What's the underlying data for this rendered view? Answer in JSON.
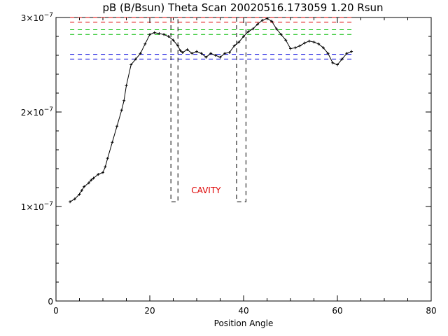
{
  "chart_data": {
    "type": "scatter",
    "title": "pB (B/Bsun) Theta Scan 20020516.173059 1.20 Rsun",
    "xlabel": "Position Angle",
    "ylabel": "",
    "xlim": [
      0,
      80
    ],
    "ylim": [
      0,
      3e-07
    ],
    "grid": false,
    "x_ticks": [
      0,
      20,
      40,
      60,
      80
    ],
    "x_tick_labels": [
      "0",
      "20",
      "40",
      "60",
      "80"
    ],
    "y_ticks": [
      0,
      1e-07,
      2e-07,
      3e-07
    ],
    "y_tick_labels": [
      {
        "mant": "0",
        "exp": ""
      },
      {
        "mant": "1×10",
        "exp": "−7"
      },
      {
        "mant": "2×10",
        "exp": "−7"
      },
      {
        "mant": "3×10",
        "exp": "−7"
      }
    ],
    "series": [
      {
        "style": "points+line",
        "color": "#000000",
        "x": [
          3,
          4,
          5,
          5.5,
          6,
          7,
          7.5,
          8,
          9,
          10,
          10.5,
          11,
          12,
          13,
          14,
          14.5,
          15,
          16,
          17,
          18,
          19,
          20,
          21,
          22,
          23,
          24,
          25,
          26,
          26.5,
          27,
          28,
          29,
          30,
          31,
          32,
          33,
          34,
          35,
          36,
          37,
          38,
          39,
          40,
          41,
          42,
          43,
          44,
          45,
          46,
          47,
          48,
          49,
          50,
          51,
          52,
          53,
          54,
          55,
          56,
          57,
          58,
          59,
          60,
          61,
          62,
          63
        ],
        "y": [
          1.05e-07,
          1.08e-07,
          1.13e-07,
          1.17e-07,
          1.21e-07,
          1.25e-07,
          1.28e-07,
          1.3e-07,
          1.34e-07,
          1.36e-07,
          1.42e-07,
          1.51e-07,
          1.68e-07,
          1.85e-07,
          2.02e-07,
          2.12e-07,
          2.28e-07,
          2.5e-07,
          2.56e-07,
          2.62e-07,
          2.72e-07,
          2.82e-07,
          2.84e-07,
          2.83e-07,
          2.82e-07,
          2.8e-07,
          2.76e-07,
          2.7e-07,
          2.65e-07,
          2.63e-07,
          2.66e-07,
          2.62e-07,
          2.64e-07,
          2.62e-07,
          2.58e-07,
          2.62e-07,
          2.6e-07,
          2.58e-07,
          2.62e-07,
          2.63e-07,
          2.7e-07,
          2.74e-07,
          2.8e-07,
          2.85e-07,
          2.88e-07,
          2.93e-07,
          2.97e-07,
          2.99e-07,
          2.96e-07,
          2.88e-07,
          2.82e-07,
          2.76e-07,
          2.67e-07,
          2.68e-07,
          2.7e-07,
          2.73e-07,
          2.75e-07,
          2.74e-07,
          2.72e-07,
          2.68e-07,
          2.62e-07,
          2.52e-07,
          2.5e-07,
          2.56e-07,
          2.62e-07,
          2.64e-07
        ]
      }
    ],
    "reference_lines": [
      {
        "color": "#dd0000",
        "y": 3e-07,
        "x_range": [
          3,
          63
        ]
      },
      {
        "color": "#dd0000",
        "y": 2.95e-07,
        "x_range": [
          3,
          63
        ]
      },
      {
        "color": "#00bb00",
        "y": 2.87e-07,
        "x_range": [
          3,
          63
        ]
      },
      {
        "color": "#00bb00",
        "y": 2.82e-07,
        "x_range": [
          3,
          63
        ]
      },
      {
        "color": "#0000dd",
        "y": 2.61e-07,
        "x_range": [
          3,
          63
        ]
      },
      {
        "color": "#0000dd",
        "y": 2.56e-07,
        "x_range": [
          3,
          63
        ]
      }
    ],
    "region_boxes": [
      {
        "x": [
          24.5,
          26
        ],
        "y": [
          1.05e-07,
          3e-07
        ],
        "color": "#000000"
      },
      {
        "x": [
          38.5,
          40.5
        ],
        "y": [
          1.05e-07,
          3e-07
        ],
        "color": "#000000"
      }
    ],
    "annotations": [
      {
        "text": "CAVITY",
        "x": 32,
        "y": 1.17e-07,
        "color": "#dd0000"
      }
    ]
  }
}
